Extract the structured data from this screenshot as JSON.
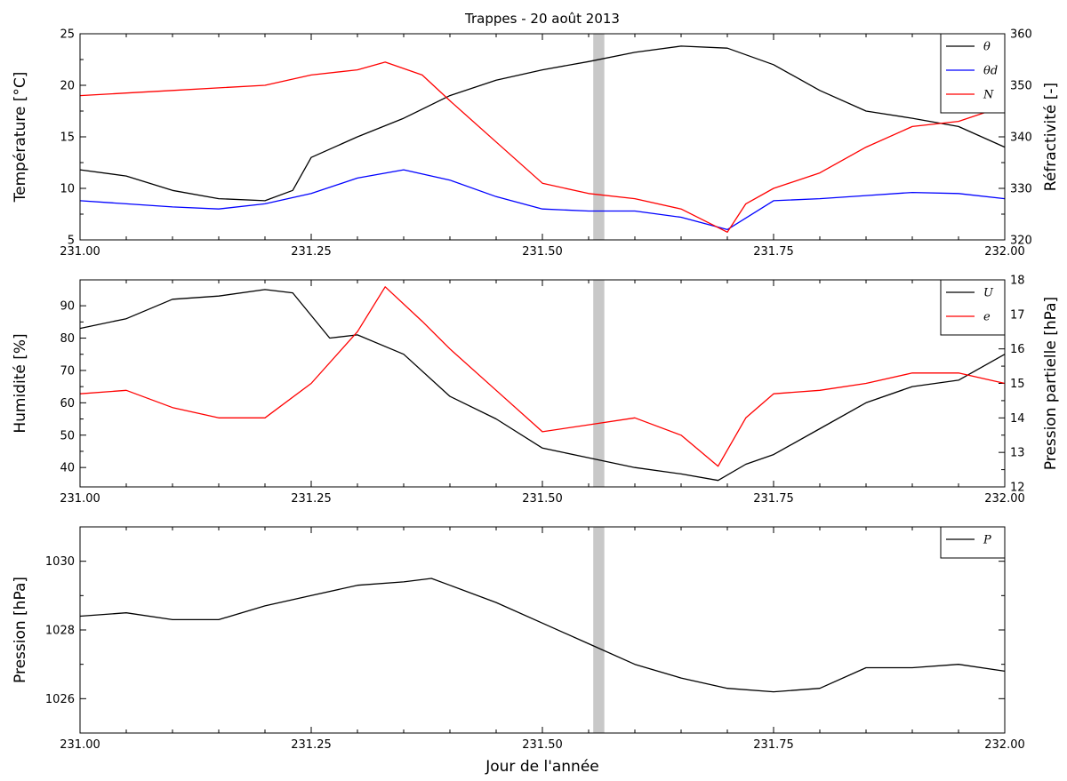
{
  "chart_data": [
    {
      "type": "line",
      "title": "Trappes - 20 août 2013",
      "ylabel": "Température [°C]",
      "y2label": "Réfractivité [-]",
      "xlim": [
        231.0,
        232.0
      ],
      "ylim": [
        5,
        25
      ],
      "y2lim": [
        320,
        360
      ],
      "x_ticks": [
        "231.00",
        "231.25",
        "231.50",
        "231.75",
        "232.00"
      ],
      "y_ticks": [
        "5",
        "10",
        "15",
        "20",
        "25"
      ],
      "y2_ticks": [
        "320",
        "330",
        "340",
        "350",
        "360"
      ],
      "highlight_band": [
        231.555,
        231.567
      ],
      "legend_position": "top-right",
      "series": [
        {
          "name": "θ",
          "axis": "left",
          "color": "#000000",
          "x": [
            231.0,
            231.05,
            231.1,
            231.15,
            231.2,
            231.23,
            231.25,
            231.3,
            231.35,
            231.4,
            231.45,
            231.5,
            231.55,
            231.6,
            231.65,
            231.7,
            231.75,
            231.8,
            231.85,
            231.9,
            231.95,
            232.0
          ],
          "values": [
            11.8,
            11.2,
            9.8,
            9.0,
            8.8,
            9.8,
            13.0,
            15.0,
            16.8,
            19.0,
            20.5,
            21.5,
            22.3,
            23.2,
            23.8,
            23.6,
            22.0,
            19.5,
            17.5,
            16.8,
            16.0,
            14.0
          ]
        },
        {
          "name": "θd",
          "axis": "left",
          "color": "#0000ff",
          "x": [
            231.0,
            231.05,
            231.1,
            231.15,
            231.2,
            231.25,
            231.3,
            231.35,
            231.4,
            231.45,
            231.5,
            231.55,
            231.6,
            231.65,
            231.7,
            231.75,
            231.8,
            231.85,
            231.9,
            231.95,
            232.0
          ],
          "values": [
            8.8,
            8.5,
            8.2,
            8.0,
            8.5,
            9.5,
            11.0,
            11.8,
            10.8,
            9.2,
            8.0,
            7.8,
            7.8,
            7.2,
            6.0,
            8.8,
            9.0,
            9.3,
            9.6,
            9.5,
            9.0
          ]
        },
        {
          "name": "N",
          "axis": "right",
          "color": "#ff0000",
          "x": [
            231.0,
            231.05,
            231.1,
            231.15,
            231.2,
            231.25,
            231.3,
            231.33,
            231.37,
            231.4,
            231.45,
            231.5,
            231.55,
            231.6,
            231.65,
            231.7,
            231.72,
            231.75,
            231.8,
            231.85,
            231.9,
            231.95,
            232.0
          ],
          "values": [
            348,
            348.5,
            349,
            349.5,
            350,
            352,
            353,
            354.5,
            352,
            347,
            339,
            331,
            329,
            328,
            326,
            321.5,
            327,
            330,
            333,
            338,
            342,
            343,
            346
          ]
        }
      ]
    },
    {
      "type": "line",
      "ylabel": "Humidité [%]",
      "y2label": "Pression partielle [hPa]",
      "xlim": [
        231.0,
        232.0
      ],
      "ylim": [
        34,
        98
      ],
      "y2lim": [
        12,
        18
      ],
      "x_ticks": [
        "231.00",
        "231.25",
        "231.50",
        "231.75",
        "232.00"
      ],
      "y_ticks": [
        "40",
        "50",
        "60",
        "70",
        "80",
        "90"
      ],
      "y2_ticks": [
        "12",
        "13",
        "14",
        "15",
        "16",
        "17",
        "18"
      ],
      "highlight_band": [
        231.555,
        231.567
      ],
      "legend_position": "top-right",
      "series": [
        {
          "name": "U",
          "axis": "left",
          "color": "#000000",
          "x": [
            231.0,
            231.05,
            231.1,
            231.15,
            231.2,
            231.23,
            231.27,
            231.3,
            231.35,
            231.4,
            231.45,
            231.5,
            231.55,
            231.6,
            231.65,
            231.69,
            231.72,
            231.75,
            231.8,
            231.85,
            231.9,
            231.95,
            232.0
          ],
          "values": [
            83,
            86,
            92,
            93,
            95,
            94,
            80,
            81,
            75,
            62,
            55,
            46,
            43,
            40,
            38,
            36,
            41,
            44,
            52,
            60,
            65,
            67,
            75
          ]
        },
        {
          "name": "e",
          "axis": "right",
          "color": "#ff0000",
          "x": [
            231.0,
            231.05,
            231.1,
            231.15,
            231.2,
            231.25,
            231.3,
            231.33,
            231.37,
            231.4,
            231.45,
            231.5,
            231.55,
            231.6,
            231.65,
            231.69,
            231.72,
            231.75,
            231.8,
            231.85,
            231.9,
            231.95,
            232.0
          ],
          "values": [
            14.7,
            14.8,
            14.3,
            14.0,
            14.0,
            15.0,
            16.5,
            17.8,
            16.8,
            16.0,
            14.8,
            13.6,
            13.8,
            14.0,
            13.5,
            12.6,
            14.0,
            14.7,
            14.8,
            15.0,
            15.3,
            15.3,
            15.0
          ]
        }
      ]
    },
    {
      "type": "line",
      "xlabel": "Jour de l'année",
      "ylabel": "Pression [hPa]",
      "xlim": [
        231.0,
        232.0
      ],
      "ylim": [
        1025,
        1031
      ],
      "x_ticks": [
        "231.00",
        "231.25",
        "231.50",
        "231.75",
        "232.00"
      ],
      "y_ticks": [
        "1026",
        "1028",
        "1030"
      ],
      "highlight_band": [
        231.555,
        231.567
      ],
      "legend_position": "top-right",
      "series": [
        {
          "name": "P",
          "axis": "left",
          "color": "#000000",
          "x": [
            231.0,
            231.05,
            231.1,
            231.15,
            231.2,
            231.25,
            231.3,
            231.35,
            231.38,
            231.4,
            231.45,
            231.5,
            231.55,
            231.6,
            231.65,
            231.7,
            231.75,
            231.8,
            231.85,
            231.9,
            231.95,
            232.0
          ],
          "values": [
            1028.4,
            1028.5,
            1028.3,
            1028.3,
            1028.7,
            1029.0,
            1029.3,
            1029.4,
            1029.5,
            1029.3,
            1028.8,
            1028.2,
            1027.6,
            1027.0,
            1026.6,
            1026.3,
            1026.2,
            1026.3,
            1026.9,
            1026.9,
            1027.0,
            1026.8
          ]
        }
      ]
    }
  ]
}
